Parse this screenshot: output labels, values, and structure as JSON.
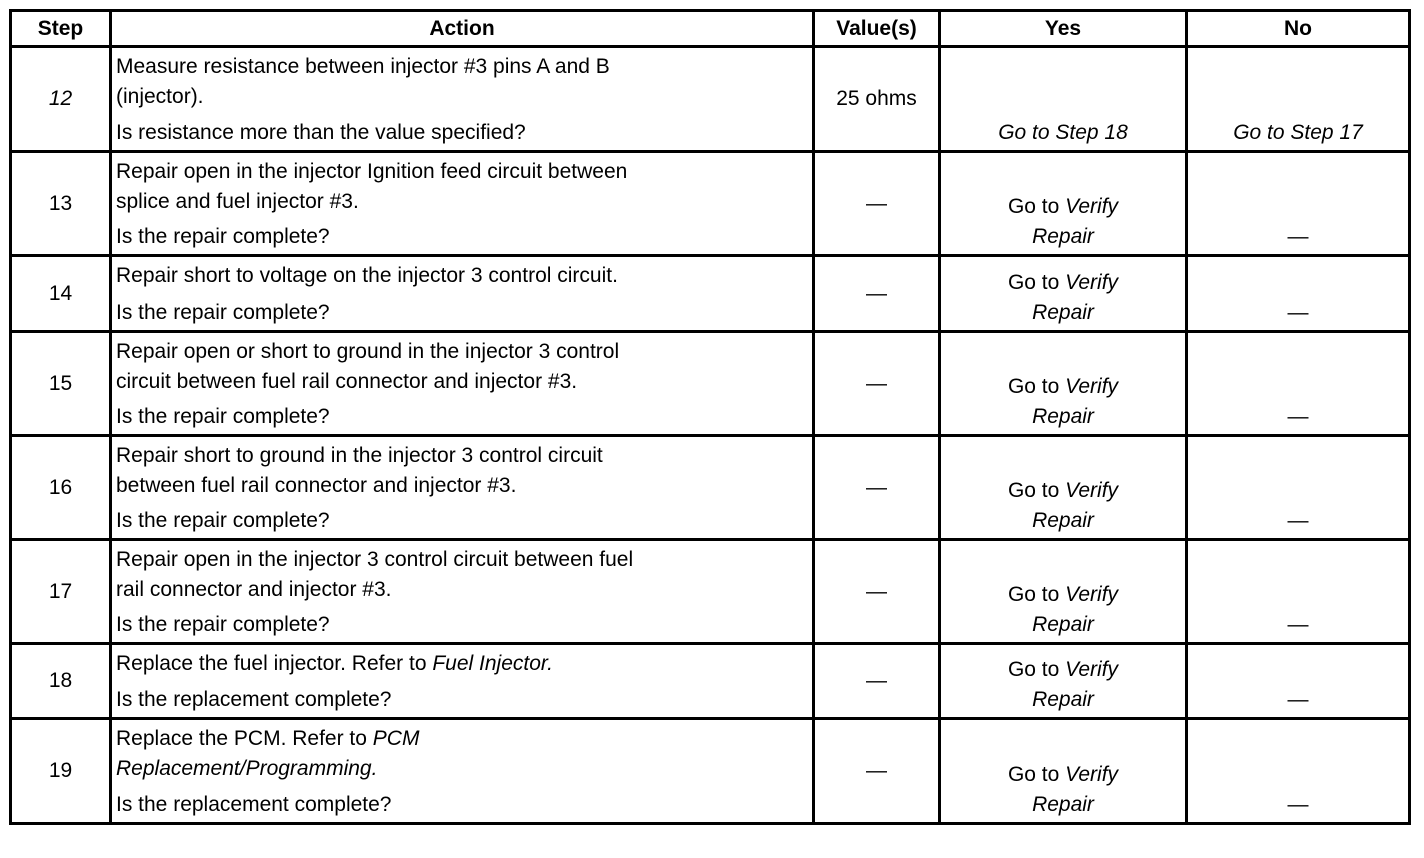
{
  "header": {
    "step": "Step",
    "action": "Action",
    "values": "Value(s)",
    "yes": "Yes",
    "no": "No"
  },
  "rows": [
    {
      "step": "12",
      "step_italic": true,
      "lines": [
        [
          {
            "t": "Measure resistance between injector #3 pins A and B"
          }
        ],
        [
          {
            "t": "(injector)."
          }
        ]
      ],
      "question": "Is resistance more than the value specified?",
      "value": "25 ohms",
      "yes": [
        [
          {
            "t": "Go to Step 18",
            "i": true
          }
        ]
      ],
      "no": [
        [
          {
            "t": "Go to Step 17",
            "i": true
          }
        ]
      ]
    },
    {
      "step": "13",
      "lines": [
        [
          {
            "t": "Repair open in the injector Ignition feed circuit between"
          }
        ],
        [
          {
            "t": "splice and fuel injector #3."
          }
        ]
      ],
      "question": "Is the repair complete?",
      "value": "—",
      "yes": [
        [
          {
            "t": "Go to "
          },
          {
            "t": "Verify",
            "i": true
          }
        ],
        [
          {
            "t": "Repair",
            "i": true
          }
        ]
      ],
      "no": [
        [
          {
            "t": "—"
          }
        ]
      ]
    },
    {
      "step": "14",
      "lines": [
        [
          {
            "t": "Repair short to voltage on the injector 3 control circuit."
          }
        ]
      ],
      "question": "Is the repair complete?",
      "value": "—",
      "yes": [
        [
          {
            "t": "Go to "
          },
          {
            "t": "Verify",
            "i": true
          }
        ],
        [
          {
            "t": "Repair",
            "i": true
          }
        ]
      ],
      "no": [
        [
          {
            "t": "—"
          }
        ]
      ]
    },
    {
      "step": "15",
      "lines": [
        [
          {
            "t": "Repair open or short to ground in the injector 3 control"
          }
        ],
        [
          {
            "t": "circuit between fuel rail connector and injector #3."
          }
        ]
      ],
      "question": "Is the repair complete?",
      "value": "—",
      "yes": [
        [
          {
            "t": "Go to "
          },
          {
            "t": "Verify",
            "i": true
          }
        ],
        [
          {
            "t": "Repair",
            "i": true
          }
        ]
      ],
      "no": [
        [
          {
            "t": "—"
          }
        ]
      ]
    },
    {
      "step": "16",
      "lines": [
        [
          {
            "t": "Repair short to ground in the injector 3 control circuit"
          }
        ],
        [
          {
            "t": "between fuel rail connector and injector #3."
          }
        ]
      ],
      "question": "Is the repair complete?",
      "value": "—",
      "yes": [
        [
          {
            "t": "Go to "
          },
          {
            "t": "Verify",
            "i": true
          }
        ],
        [
          {
            "t": "Repair",
            "i": true
          }
        ]
      ],
      "no": [
        [
          {
            "t": "—"
          }
        ]
      ]
    },
    {
      "step": "17",
      "lines": [
        [
          {
            "t": "Repair open in the injector 3 control circuit between fuel"
          }
        ],
        [
          {
            "t": "rail connector and injector #3."
          }
        ]
      ],
      "question": "Is the repair complete?",
      "value": "—",
      "yes": [
        [
          {
            "t": "Go to "
          },
          {
            "t": "Verify",
            "i": true
          }
        ],
        [
          {
            "t": "Repair",
            "i": true
          }
        ]
      ],
      "no": [
        [
          {
            "t": "—"
          }
        ]
      ]
    },
    {
      "step": "18",
      "lines": [
        [
          {
            "t": "Replace the fuel injector. Refer to "
          },
          {
            "t": "Fuel Injector.",
            "i": true
          }
        ]
      ],
      "question": "Is the replacement complete?",
      "value": "—",
      "yes": [
        [
          {
            "t": "Go to "
          },
          {
            "t": "Verify",
            "i": true
          }
        ],
        [
          {
            "t": "Repair",
            "i": true
          }
        ]
      ],
      "no": [
        [
          {
            "t": "—"
          }
        ]
      ]
    },
    {
      "step": "19",
      "lines": [
        [
          {
            "t": "Replace the PCM. Refer to "
          },
          {
            "t": "PCM",
            "i": true
          }
        ],
        [
          {
            "t": "Replacement/Programming.",
            "i": true
          }
        ]
      ],
      "question": "Is the replacement complete?",
      "value": "—",
      "yes": [
        [
          {
            "t": "Go to "
          },
          {
            "t": "Verify",
            "i": true
          }
        ],
        [
          {
            "t": "Repair",
            "i": true
          }
        ]
      ],
      "no": [
        [
          {
            "t": "—"
          }
        ]
      ]
    }
  ]
}
